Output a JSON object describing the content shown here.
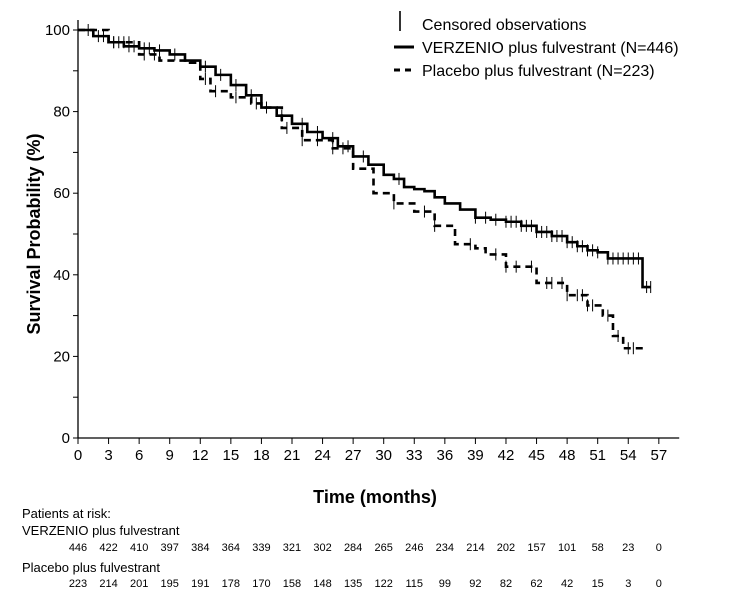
{
  "chart_data": {
    "type": "line",
    "subtype": "kaplan-meier",
    "title": "",
    "xlabel": "Time (months)",
    "ylabel": "Survival Probability (%)",
    "xlim": [
      0,
      59
    ],
    "ylim": [
      0,
      100
    ],
    "xticks": [
      0,
      3,
      6,
      9,
      12,
      15,
      18,
      21,
      24,
      27,
      30,
      33,
      36,
      39,
      42,
      45,
      48,
      51,
      54,
      57
    ],
    "yticks": [
      0,
      20,
      40,
      60,
      80,
      100
    ],
    "grid": false,
    "legend": {
      "placement": "top-right",
      "censored_label": "Censored observations",
      "entries": [
        "VERZENIO plus fulvestrant (N=446)",
        "Placebo plus fulvestrant (N=223)"
      ]
    },
    "series": [
      {
        "name": "VERZENIO plus fulvestrant (N=446)",
        "style": "solid",
        "x": [
          0,
          1.5,
          3,
          4.5,
          6,
          7.5,
          9,
          10.5,
          12,
          13.5,
          15,
          16.5,
          18,
          19.5,
          21,
          22.5,
          24,
          25.5,
          27,
          28.5,
          30,
          31,
          32,
          33,
          34,
          35,
          36,
          37.5,
          39,
          40.5,
          42,
          43.5,
          45,
          46.5,
          48,
          49,
          50,
          51,
          52,
          53,
          55.3,
          55.4,
          56.2
        ],
        "y": [
          100,
          98.5,
          97,
          96,
          95.5,
          95,
          94,
          92.5,
          91,
          89,
          86.5,
          84,
          81,
          79,
          77,
          75,
          73.5,
          71.5,
          69,
          67,
          64.5,
          63.5,
          61.5,
          61,
          60.5,
          59,
          57.5,
          56,
          54,
          53.5,
          53,
          52,
          50.5,
          49.5,
          48,
          47,
          46,
          45.5,
          44,
          44,
          44,
          37,
          37
        ],
        "censored_x": [
          1,
          2,
          2.5,
          3.5,
          4,
          5,
          5.5,
          6.5,
          7,
          8,
          9.5,
          12.5,
          14,
          15.5,
          17,
          18.5,
          20,
          22,
          23.5,
          25,
          26.5,
          28,
          31.5,
          39,
          40,
          41,
          42,
          42.5,
          43,
          43.5,
          44,
          44.5,
          45,
          45.5,
          46,
          46.5,
          47,
          47.5,
          48,
          48.5,
          49,
          49.5,
          50,
          50.5,
          51,
          52,
          52.5,
          53,
          53.5,
          54,
          54.5,
          55,
          55.8,
          56.2
        ]
      },
      {
        "name": "Placebo plus fulvestrant (N=223)",
        "style": "dashed",
        "x": [
          0,
          3,
          6,
          8,
          11,
          12,
          13,
          15,
          17,
          18,
          20,
          22,
          25,
          27,
          29,
          31,
          33,
          35,
          37,
          39,
          40,
          42,
          45,
          48,
          50,
          51.5,
          52.5,
          53.5,
          54.5,
          55.5
        ],
        "y": [
          100,
          97,
          94,
          92.5,
          92,
          88,
          85,
          83.5,
          82,
          81,
          76,
          73,
          71,
          66,
          60,
          57.5,
          55.5,
          52,
          47.5,
          46.5,
          45,
          42,
          38,
          35,
          32.5,
          30,
          25,
          22,
          22,
          22
        ],
        "censored_x": [
          3.5,
          4.5,
          5,
          6.5,
          7.5,
          12.5,
          13.5,
          15.5,
          17.5,
          20.5,
          22,
          23.5,
          25,
          26,
          31,
          34,
          35,
          38.5,
          41,
          42,
          43,
          44.5,
          46,
          46.5,
          47.5,
          48,
          49,
          49.5,
          50,
          50.5,
          52,
          53,
          54,
          54.5
        ]
      }
    ],
    "at_risk": {
      "title": "Patients at risk:",
      "rows": [
        {
          "label": "VERZENIO plus fulvestrant",
          "values": [
            446,
            422,
            410,
            397,
            384,
            364,
            339,
            321,
            302,
            284,
            265,
            246,
            234,
            214,
            202,
            157,
            101,
            58,
            23,
            0
          ]
        },
        {
          "label": "Placebo plus fulvestrant",
          "values": [
            223,
            214,
            201,
            195,
            191,
            178,
            170,
            158,
            148,
            135,
            122,
            115,
            99,
            92,
            82,
            62,
            42,
            15,
            3,
            0
          ]
        }
      ]
    }
  }
}
